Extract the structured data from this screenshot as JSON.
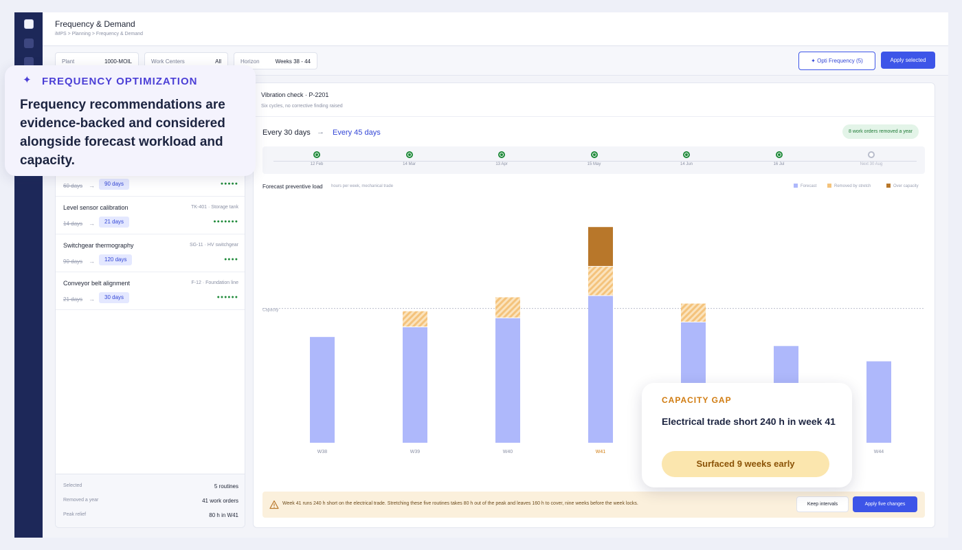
{
  "header": {
    "title": "Frequency & Demand",
    "breadcrumb": "iMPS > Planning > Frequency & Demand"
  },
  "filters": {
    "plant_label": "Plant",
    "plant_value": "1000-MOIL",
    "workcenters_label": "Work Centers",
    "workcenters_value": "All",
    "horizon_label": "Horizon",
    "horizon_value": "Weeks 38 - 44"
  },
  "actions": {
    "opti_label": "Opti Frequency (5)",
    "apply_selected_label": "Apply selected"
  },
  "routines": [
    {
      "name": "",
      "asset": "",
      "old": "60 days",
      "new": "90 days",
      "dots": "●●●●●"
    },
    {
      "name": "Level sensor calibration",
      "asset": "TK-401 · Storage tank",
      "old": "14 days",
      "new": "21 days",
      "dots": "●●●●●●●"
    },
    {
      "name": "Switchgear thermography",
      "asset": "SG-11 · HV switchgear",
      "old": "90 days",
      "new": "120 days",
      "dots": "●●●●"
    },
    {
      "name": "Conveyor belt alignment",
      "asset": "F-12 · Foundation line",
      "old": "21 days",
      "new": "30 days",
      "dots": "●●●●●●"
    }
  ],
  "summary": {
    "selected_label": "Selected",
    "selected_value": "5 routines",
    "removed_label": "Removed a year",
    "removed_value": "41 work orders",
    "relief_label": "Peak relief",
    "relief_value": "80 h in W41"
  },
  "detail": {
    "title": "Vibration check · P-2201",
    "subtitle": "Six cycles, no corrective finding raised",
    "freq_old": "Every 30 days",
    "freq_new": "Every 45 days",
    "removed_badge": "8 work orders removed a year",
    "timeline": [
      {
        "label": "12 Feb",
        "done": true
      },
      {
        "label": "14 Mar",
        "done": true
      },
      {
        "label": "13 Apr",
        "done": true
      },
      {
        "label": "15 May",
        "done": true
      },
      {
        "label": "14 Jun",
        "done": true
      },
      {
        "label": "16 Jul",
        "done": true
      },
      {
        "label": "Next 30 Aug",
        "done": false
      }
    ]
  },
  "chart_data": {
    "type": "bar",
    "title": "Forecast preventive load",
    "subtitle": "hours per week, mechanical trade",
    "categories": [
      "W38",
      "W39",
      "W40",
      "W41",
      "W42",
      "W43",
      "W44"
    ],
    "highlight_category": "W41",
    "series": [
      {
        "name": "Forecast",
        "color": "#aeb8fb",
        "values": [
          153,
          167,
          180,
          212,
          174,
          140,
          118
        ]
      },
      {
        "name": "Removed by stretch",
        "color": "#f4c37c",
        "values": [
          0,
          23,
          30,
          42,
          27,
          0,
          0
        ]
      },
      {
        "name": "Over capacity",
        "color": "#b8772a",
        "values": [
          0,
          0,
          0,
          57,
          0,
          0,
          0
        ]
      }
    ],
    "capacity_label": "Capacity",
    "capacity_value": 194,
    "ylim": [
      0,
      330
    ]
  },
  "warning": {
    "text": "Week 41 runs 240 h short on the electrical trade. Stretching these five routines takes 80 h out of the peak and leaves 160 h to cover, nine weeks before the week locks.",
    "keep_label": "Keep intervals",
    "apply_label": "Apply five changes"
  },
  "callout": {
    "heading": "FREQUENCY OPTIMIZATION",
    "body": "Frequency recommendations are evidence-backed and considered alongside forecast workload and capacity."
  },
  "gap_card": {
    "heading": "CAPACITY GAP",
    "body": "Electrical trade short 240 h in week 41",
    "pill": "Surfaced 9 weeks early"
  }
}
